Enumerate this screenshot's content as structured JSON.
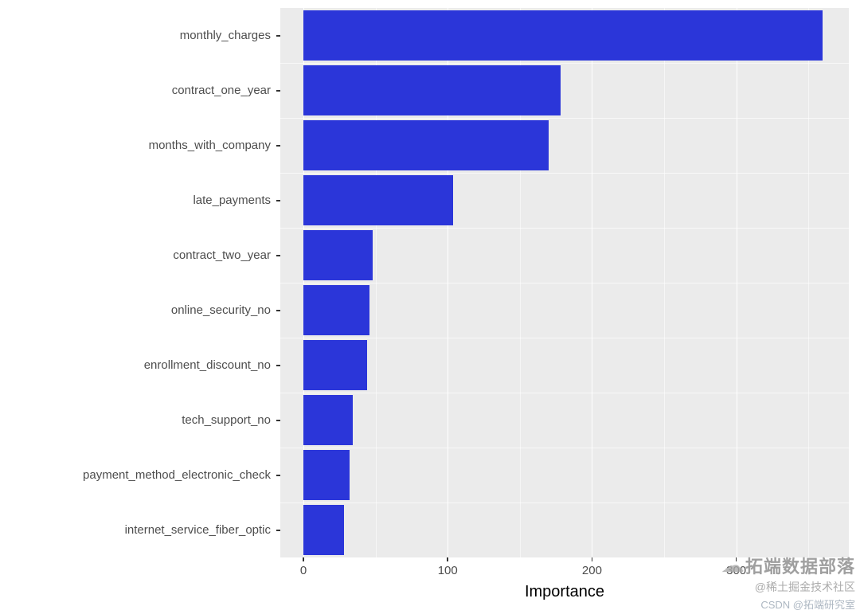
{
  "chart_data": {
    "type": "bar",
    "orientation": "horizontal",
    "title": "",
    "xlabel": "Importance",
    "ylabel": "",
    "categories": [
      "monthly_charges",
      "contract_one_year",
      "months_with_company",
      "late_payments",
      "contract_two_year",
      "online_security_no",
      "enrollment_discount_no",
      "tech_support_no",
      "payment_method_electronic_check",
      "internet_service_fiber_optic"
    ],
    "values": [
      360,
      178,
      170,
      104,
      48,
      46,
      44,
      34,
      32,
      28
    ],
    "x_ticks": [
      0,
      100,
      200,
      300
    ],
    "x_minor_ticks": [
      50,
      150,
      250,
      350
    ],
    "xlim": [
      -16,
      378
    ],
    "grid": true,
    "legend": "none",
    "bar_color": "#2b36d9",
    "panel_bg": "#ebebeb",
    "grid_color": "#ffffff",
    "axis_text_color": "#4d4d4d",
    "tick_color": "#333333"
  },
  "watermark": {
    "cloud_icon": "☁",
    "line1": "拓端数据部落",
    "line2": "@稀土掘金技术社区",
    "line3": "CSDN @拓端研究室"
  }
}
